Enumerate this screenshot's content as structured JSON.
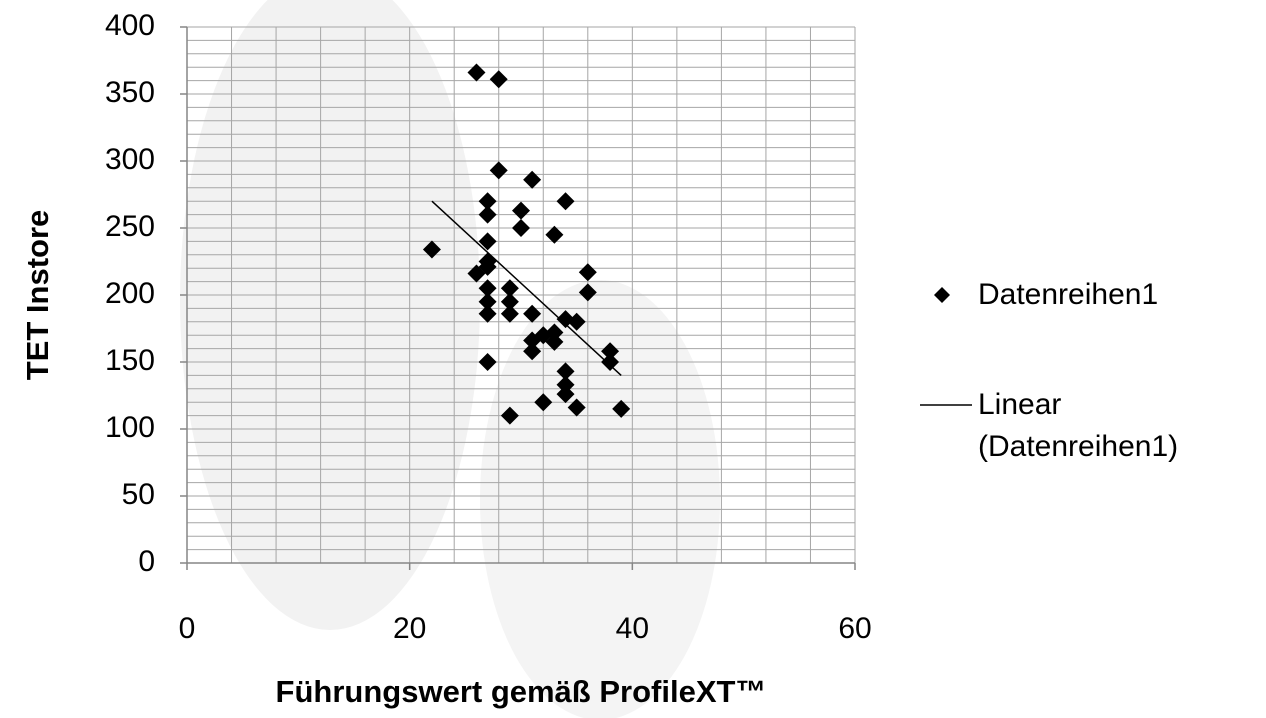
{
  "chart_data": {
    "type": "scatter",
    "x_label": "Führungswert gemäß ProfileXT™",
    "y_label": "TET Instore",
    "xlim": [
      0,
      60
    ],
    "ylim": [
      0,
      400
    ],
    "xticks": [
      0,
      20,
      40,
      60
    ],
    "yticks": [
      0,
      50,
      100,
      150,
      200,
      250,
      300,
      350,
      400
    ],
    "xgrid": [
      0,
      4,
      8,
      12,
      16,
      20,
      24,
      28,
      32,
      36,
      40,
      44,
      48,
      52,
      56,
      60
    ],
    "ygrid": [
      0,
      10,
      20,
      30,
      40,
      50,
      60,
      70,
      80,
      90,
      100,
      110,
      120,
      130,
      140,
      150,
      160,
      170,
      180,
      190,
      200,
      210,
      220,
      230,
      240,
      250,
      260,
      270,
      280,
      290,
      300,
      310,
      320,
      330,
      340,
      350,
      360,
      370,
      380,
      390,
      400
    ],
    "grid": true,
    "series": [
      {
        "name": "Datenreihen1",
        "color": "#000000",
        "x": [
          26,
          28,
          28,
          31,
          34,
          27,
          27,
          30,
          30,
          33,
          22,
          27,
          26,
          27,
          27,
          36,
          36,
          27,
          29,
          27,
          29,
          27,
          29,
          31,
          34,
          35,
          31,
          32,
          33,
          33,
          31,
          27,
          38,
          38,
          34,
          34,
          34,
          32,
          35,
          29,
          39
        ],
        "values": [
          366,
          361,
          293,
          286,
          270,
          270,
          260,
          263,
          250,
          245,
          234,
          240,
          216,
          221,
          225,
          217,
          202,
          205,
          205,
          195,
          195,
          186,
          186,
          186,
          182,
          180,
          166,
          170,
          172,
          165,
          158,
          150,
          158,
          150,
          143,
          133,
          126,
          120,
          116,
          110,
          115
        ]
      }
    ],
    "trendline": {
      "name": "Linear (Datenreihen1)",
      "color": "#000000",
      "x": [
        22,
        39
      ],
      "values": [
        270,
        140
      ]
    }
  }
}
